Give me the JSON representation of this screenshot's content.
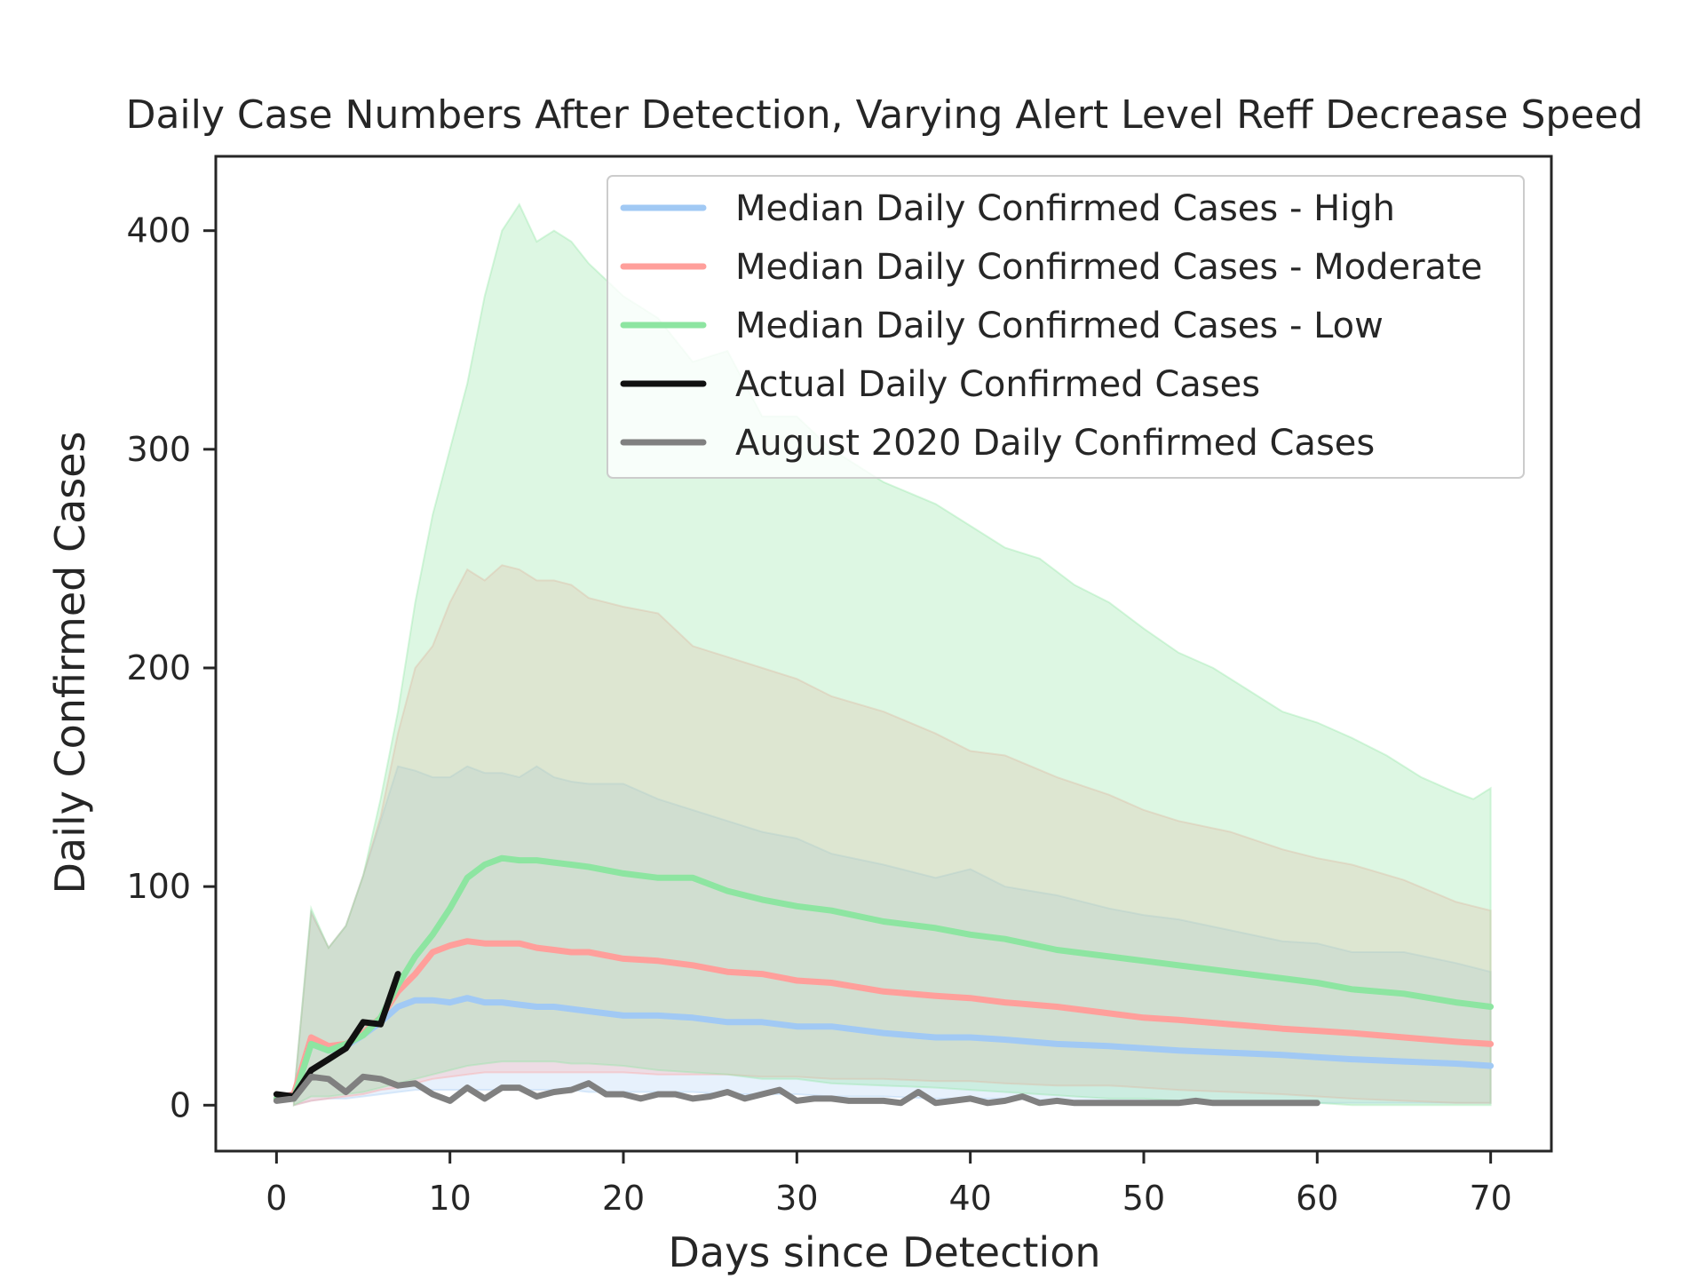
{
  "chart_data": {
    "type": "line",
    "title": "Daily Case Numbers After Detection, Varying Alert Level Reff Decrease Speed",
    "xlabel": "Days since Detection",
    "ylabel": "Daily Confirmed Cases",
    "xlim": [
      -3.5,
      73.5
    ],
    "ylim": [
      -21,
      434
    ],
    "xticks": [
      0,
      10,
      20,
      30,
      40,
      50,
      60,
      70
    ],
    "yticks": [
      0,
      100,
      200,
      300,
      400
    ],
    "grid": false,
    "legend_position": "top-right",
    "bands": [
      {
        "name": "High",
        "color": "#a1c9f4",
        "opacity": 0.25,
        "x": [
          1,
          2,
          3,
          4,
          5,
          6,
          7,
          8,
          9,
          10,
          11,
          12,
          13,
          14,
          15,
          16,
          17,
          18,
          20,
          22,
          24,
          26,
          28,
          30,
          32,
          35,
          38,
          40,
          42,
          45,
          48,
          50,
          52,
          55,
          58,
          60,
          62,
          65,
          68,
          70
        ],
        "upper": [
          4,
          88,
          72,
          82,
          105,
          130,
          155,
          153,
          150,
          150,
          155,
          152,
          152,
          150,
          155,
          150,
          148,
          147,
          147,
          140,
          135,
          130,
          125,
          122,
          115,
          110,
          104,
          108,
          100,
          96,
          90,
          87,
          85,
          80,
          75,
          74,
          70,
          70,
          65,
          61
        ],
        "lower": [
          0,
          2,
          3,
          3,
          4,
          5,
          6,
          7,
          7,
          7,
          7,
          7,
          7,
          7,
          7,
          7,
          7,
          6,
          6,
          6,
          6,
          5,
          5,
          5,
          4,
          4,
          3,
          3,
          3,
          2,
          2,
          2,
          1,
          1,
          1,
          1,
          1,
          1,
          1,
          1
        ]
      },
      {
        "name": "Moderate",
        "color": "#ff9f9b",
        "opacity": 0.25,
        "x": [
          1,
          2,
          3,
          4,
          5,
          6,
          7,
          8,
          9,
          10,
          11,
          12,
          13,
          14,
          15,
          16,
          17,
          18,
          20,
          22,
          24,
          26,
          28,
          30,
          32,
          35,
          38,
          40,
          42,
          45,
          48,
          50,
          52,
          55,
          58,
          60,
          62,
          65,
          68,
          70
        ],
        "upper": [
          4,
          88,
          72,
          82,
          105,
          132,
          170,
          200,
          210,
          230,
          245,
          240,
          247,
          245,
          240,
          240,
          238,
          232,
          228,
          225,
          210,
          205,
          200,
          195,
          187,
          180,
          170,
          162,
          160,
          150,
          142,
          135,
          130,
          125,
          117,
          113,
          110,
          103,
          93,
          89
        ],
        "lower": [
          0,
          2,
          3,
          4,
          5,
          7,
          8,
          10,
          12,
          13,
          14,
          15,
          15,
          15,
          15,
          15,
          15,
          15,
          15,
          14,
          14,
          14,
          13,
          13,
          12,
          12,
          11,
          11,
          10,
          9,
          9,
          8,
          7,
          6,
          5,
          4,
          3,
          2,
          1,
          1
        ]
      },
      {
        "name": "Low",
        "color": "#8de5a1",
        "opacity": 0.3,
        "x": [
          1,
          2,
          3,
          4,
          5,
          6,
          7,
          8,
          9,
          10,
          11,
          12,
          13,
          14,
          15,
          16,
          17,
          18,
          20,
          22,
          24,
          26,
          28,
          30,
          32,
          35,
          38,
          40,
          42,
          44,
          46,
          48,
          50,
          52,
          54,
          56,
          58,
          60,
          62,
          64,
          66,
          68,
          69,
          70
        ],
        "upper": [
          4,
          90,
          72,
          82,
          105,
          140,
          180,
          230,
          270,
          300,
          330,
          370,
          400,
          412,
          395,
          400,
          395,
          385,
          370,
          360,
          340,
          345,
          315,
          315,
          300,
          285,
          275,
          265,
          255,
          250,
          238,
          230,
          218,
          207,
          200,
          190,
          180,
          175,
          168,
          160,
          150,
          143,
          140,
          145
        ],
        "lower": [
          0,
          4,
          4,
          5,
          6,
          8,
          10,
          12,
          14,
          16,
          18,
          19,
          20,
          20,
          20,
          20,
          19,
          19,
          18,
          16,
          15,
          14,
          12,
          12,
          10,
          9,
          8,
          7,
          6,
          5,
          4,
          3,
          3,
          2,
          2,
          1,
          1,
          1,
          0,
          0,
          0,
          0,
          0,
          0
        ]
      }
    ],
    "series": [
      {
        "name": "Median Daily Confirmed Cases - High",
        "color": "#a1c9f4",
        "x": [
          0,
          1,
          2,
          3,
          4,
          5,
          6,
          7,
          8,
          9,
          10,
          11,
          12,
          13,
          14,
          15,
          16,
          17,
          18,
          20,
          22,
          24,
          26,
          28,
          30,
          32,
          35,
          38,
          40,
          42,
          45,
          48,
          50,
          52,
          55,
          58,
          60,
          62,
          65,
          68,
          70
        ],
        "y": [
          3,
          5,
          28,
          25,
          27,
          32,
          38,
          45,
          48,
          48,
          47,
          49,
          47,
          47,
          46,
          45,
          45,
          44,
          43,
          41,
          41,
          40,
          38,
          38,
          36,
          36,
          33,
          31,
          31,
          30,
          28,
          27,
          26,
          25,
          24,
          23,
          22,
          21,
          20,
          19,
          18
        ]
      },
      {
        "name": "Median Daily Confirmed Cases - Moderate",
        "color": "#ff9f9b",
        "x": [
          0,
          1,
          2,
          3,
          4,
          5,
          6,
          7,
          8,
          9,
          10,
          11,
          12,
          13,
          14,
          15,
          16,
          17,
          18,
          20,
          22,
          24,
          26,
          28,
          30,
          32,
          35,
          38,
          40,
          42,
          45,
          48,
          50,
          52,
          55,
          58,
          60,
          62,
          65,
          68,
          70
        ],
        "y": [
          3,
          5,
          31,
          27,
          28,
          33,
          40,
          52,
          60,
          70,
          73,
          75,
          74,
          74,
          74,
          72,
          71,
          70,
          70,
          67,
          66,
          64,
          61,
          60,
          57,
          56,
          52,
          50,
          49,
          47,
          45,
          42,
          40,
          39,
          37,
          35,
          34,
          33,
          31,
          29,
          28
        ]
      },
      {
        "name": "Median Daily Confirmed Cases - Low",
        "color": "#8de5a1",
        "x": [
          0,
          1,
          2,
          3,
          4,
          5,
          6,
          7,
          8,
          9,
          10,
          11,
          12,
          13,
          14,
          15,
          16,
          17,
          18,
          20,
          22,
          24,
          26,
          28,
          30,
          32,
          35,
          38,
          40,
          42,
          45,
          48,
          50,
          52,
          55,
          58,
          60,
          62,
          65,
          68,
          70
        ],
        "y": [
          3,
          3,
          28,
          25,
          28,
          32,
          40,
          55,
          68,
          78,
          90,
          104,
          110,
          113,
          112,
          112,
          111,
          110,
          109,
          106,
          104,
          104,
          98,
          94,
          91,
          89,
          84,
          81,
          78,
          76,
          71,
          68,
          66,
          64,
          61,
          58,
          56,
          53,
          51,
          47,
          45
        ]
      },
      {
        "name": "Actual Daily Confirmed Cases",
        "color": "#111111",
        "x": [
          0,
          1,
          2,
          3,
          4,
          5,
          6,
          7
        ],
        "y": [
          5,
          4,
          16,
          21,
          26,
          38,
          37,
          60
        ]
      },
      {
        "name": "August 2020 Daily Confirmed Cases",
        "color": "#808080",
        "x": [
          0,
          1,
          2,
          3,
          4,
          5,
          6,
          7,
          8,
          9,
          10,
          11,
          12,
          13,
          14,
          15,
          16,
          17,
          18,
          19,
          20,
          21,
          22,
          23,
          24,
          25,
          26,
          27,
          28,
          29,
          30,
          31,
          32,
          33,
          34,
          35,
          36,
          37,
          38,
          39,
          40,
          41,
          42,
          43,
          44,
          45,
          46,
          47,
          48,
          49,
          50,
          51,
          52,
          53,
          54,
          55,
          56,
          57,
          58,
          59,
          60
        ],
        "y": [
          2,
          3,
          13,
          12,
          6,
          13,
          12,
          9,
          10,
          5,
          2,
          8,
          3,
          8,
          8,
          4,
          6,
          7,
          10,
          5,
          5,
          3,
          5,
          5,
          3,
          4,
          6,
          3,
          5,
          7,
          2,
          3,
          3,
          2,
          2,
          2,
          1,
          6,
          1,
          2,
          3,
          1,
          2,
          4,
          1,
          2,
          1,
          1,
          1,
          1,
          1,
          1,
          1,
          2,
          1,
          1,
          1,
          1,
          1,
          1,
          1
        ]
      }
    ]
  }
}
